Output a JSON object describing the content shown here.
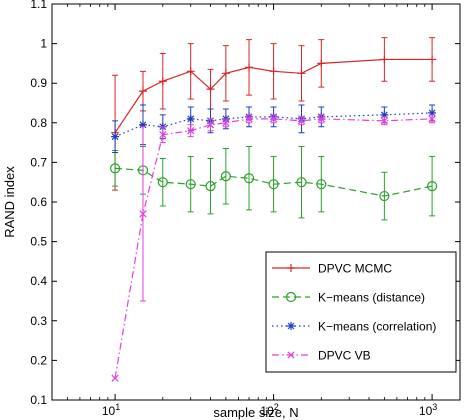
{
  "chart_data": {
    "type": "line",
    "title": "",
    "xlabel": "sample size, N",
    "ylabel": "RAND index",
    "xscale": "log",
    "xlim": [
      4,
      1500
    ],
    "ylim": [
      0.1,
      1.1
    ],
    "grid": false,
    "legend_position": "bottom-right",
    "x_ticks": [
      10,
      100,
      1000
    ],
    "x_tick_labels": [
      {
        "base": "10",
        "exp": "1"
      },
      {
        "base": "10",
        "exp": "2"
      },
      {
        "base": "10",
        "exp": "3"
      }
    ],
    "y_ticks": [
      0.1,
      0.2,
      0.3,
      0.4,
      0.5,
      0.6,
      0.7,
      0.8,
      0.9,
      1,
      1.1
    ],
    "y_tick_labels": [
      "0.1",
      "0.2",
      "0.3",
      "0.4",
      "0.5",
      "0.6",
      "0.7",
      "0.8",
      "0.9",
      "1",
      "1.1"
    ],
    "series": [
      {
        "name": "DPVC MCMC",
        "color": "#d62728",
        "line": "solid",
        "marker": "plus",
        "x": [
          10,
          15,
          20,
          30,
          40,
          50,
          70,
          100,
          150,
          200,
          500,
          1000
        ],
        "y": [
          0.775,
          0.88,
          0.905,
          0.93,
          0.885,
          0.925,
          0.94,
          0.93,
          0.925,
          0.95,
          0.96,
          0.96
        ],
        "err": [
          0.145,
          0.05,
          0.07,
          0.07,
          0.05,
          0.07,
          0.07,
          0.07,
          0.07,
          0.06,
          0.055,
          0.055
        ]
      },
      {
        "name": "K−means (distance)",
        "color": "#2ca02c",
        "line": "dashed",
        "marker": "circle",
        "x": [
          10,
          15,
          20,
          30,
          40,
          50,
          70,
          100,
          150,
          200,
          500,
          1000
        ],
        "y": [
          0.685,
          0.68,
          0.65,
          0.645,
          0.64,
          0.665,
          0.66,
          0.645,
          0.65,
          0.645,
          0.615,
          0.64
        ],
        "err": [
          0.045,
          0.06,
          0.06,
          0.07,
          0.07,
          0.07,
          0.08,
          0.07,
          0.09,
          0.07,
          0.06,
          0.075
        ]
      },
      {
        "name": "K−means (correlation)",
        "color": "#1f3fbf",
        "line": "dotted",
        "marker": "asterisk",
        "x": [
          10,
          15,
          20,
          30,
          40,
          50,
          70,
          100,
          150,
          200,
          500,
          1000
        ],
        "y": [
          0.765,
          0.795,
          0.79,
          0.81,
          0.805,
          0.81,
          0.815,
          0.815,
          0.81,
          0.815,
          0.82,
          0.825
        ],
        "err": [
          0.04,
          0.05,
          0.03,
          0.03,
          0.03,
          0.025,
          0.025,
          0.025,
          0.035,
          0.025,
          0.02,
          0.02
        ]
      },
      {
        "name": "DPVC VB",
        "color": "#e040e0",
        "line": "dashdot",
        "marker": "x",
        "x": [
          10,
          15,
          20,
          30,
          40,
          50,
          70,
          100,
          150,
          200,
          500,
          1000
        ],
        "y": [
          0.155,
          0.57,
          0.77,
          0.78,
          0.795,
          0.8,
          0.81,
          0.81,
          0.805,
          0.81,
          0.805,
          0.81
        ],
        "err": [
          0,
          0.22,
          0.02,
          0.015,
          0.015,
          0.01,
          0.01,
          0.01,
          0.01,
          0.01,
          0.01,
          0.01
        ]
      }
    ]
  }
}
